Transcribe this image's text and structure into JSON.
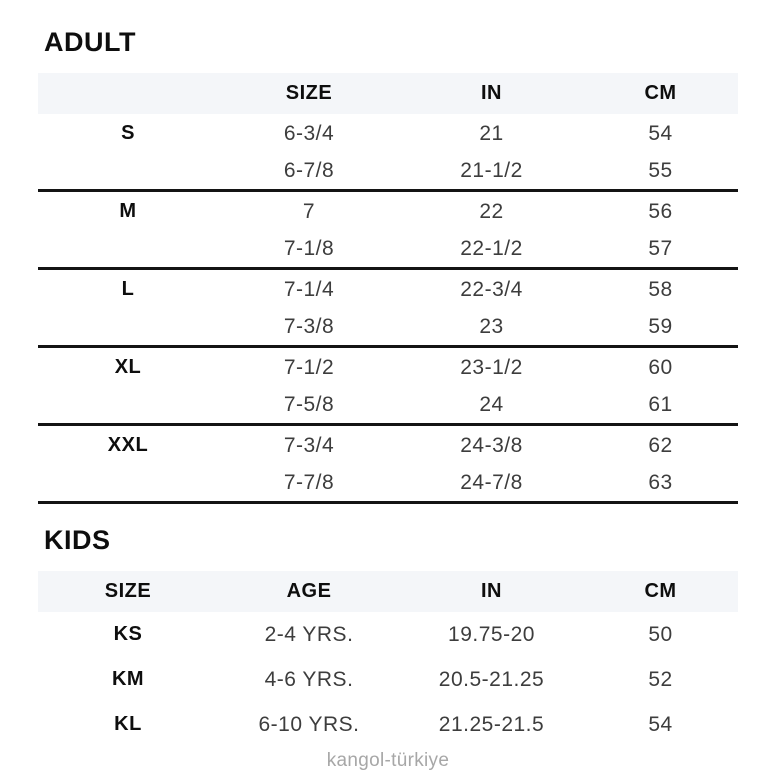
{
  "adult": {
    "heading": "ADULT",
    "columns": {
      "label": "",
      "size": "SIZE",
      "in": "IN",
      "cm": "CM"
    },
    "rows": [
      {
        "label": "S",
        "size": "6-3/4",
        "in": "21",
        "cm": "54"
      },
      {
        "label": "",
        "size": "6-7/8",
        "in": "21-1/2",
        "cm": "55"
      },
      {
        "label": "M",
        "size": "7",
        "in": "22",
        "cm": "56"
      },
      {
        "label": "",
        "size": "7-1/8",
        "in": "22-1/2",
        "cm": "57"
      },
      {
        "label": "L",
        "size": "7-1/4",
        "in": "22-3/4",
        "cm": "58"
      },
      {
        "label": "",
        "size": "7-3/8",
        "in": "23",
        "cm": "59"
      },
      {
        "label": "XL",
        "size": "7-1/2",
        "in": "23-1/2",
        "cm": "60"
      },
      {
        "label": "",
        "size": "7-5/8",
        "in": "24",
        "cm": "61"
      },
      {
        "label": "XXL",
        "size": "7-3/4",
        "in": "24-3/8",
        "cm": "62"
      },
      {
        "label": "",
        "size": "7-7/8",
        "in": "24-7/8",
        "cm": "63"
      }
    ]
  },
  "kids": {
    "heading": "KIDS",
    "columns": {
      "size": "SIZE",
      "age": "AGE",
      "in": "IN",
      "cm": "CM"
    },
    "rows": [
      {
        "size": "KS",
        "age": "2-4 YRS.",
        "in": "19.75-20",
        "cm": "50"
      },
      {
        "size": "KM",
        "age": "4-6 YRS.",
        "in": "20.5-21.25",
        "cm": "52"
      },
      {
        "size": "KL",
        "age": "6-10 YRS.",
        "in": "21.25-21.5",
        "cm": "54"
      }
    ]
  },
  "footer": {
    "text": "kangol-türkiye"
  },
  "colors": {
    "header_band": "#f4f6f9",
    "separator": "#141414",
    "heading_text": "#0e0e0e",
    "data_text": "#3d3d3d",
    "footer_text": "#a7a7a7"
  }
}
